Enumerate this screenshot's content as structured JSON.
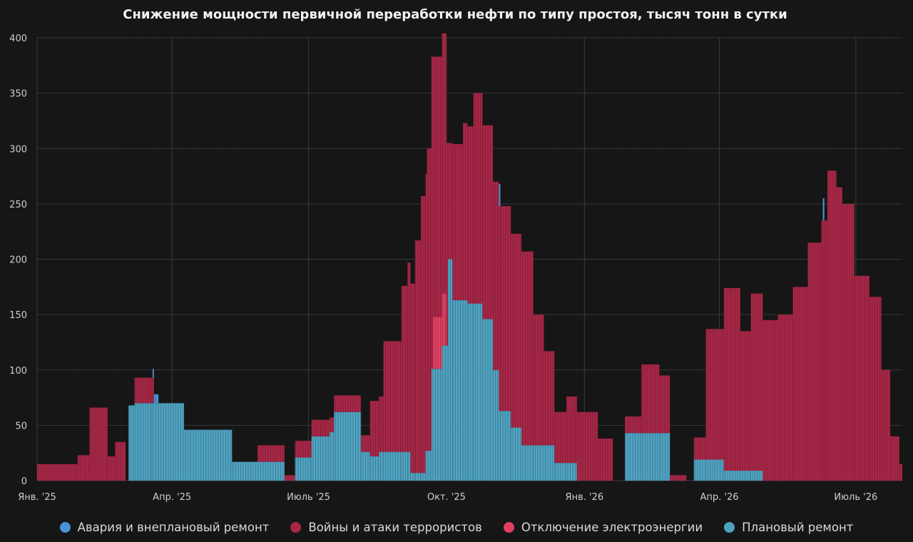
{
  "chart_data": {
    "type": "bar",
    "stacked": true,
    "title": "Снижение мощности первичной переработки нефти по типу простоя, тысяч тонн в сутки",
    "xlabel": "",
    "ylabel": "",
    "x_range": [
      "2025-01-01",
      "2026-08-01"
    ],
    "ylim": [
      0,
      400
    ],
    "y_ticks": [
      0,
      50,
      100,
      150,
      200,
      250,
      300,
      350,
      400
    ],
    "x_ticks": [
      {
        "date": "2025-01-01",
        "label": "Янв. '25"
      },
      {
        "date": "2025-04-01",
        "label": "Апр. '25"
      },
      {
        "date": "2025-07-01",
        "label": "Июль '25"
      },
      {
        "date": "2025-10-01",
        "label": "Окт. '25"
      },
      {
        "date": "2026-01-01",
        "label": "Янв. '26"
      },
      {
        "date": "2026-04-01",
        "label": "Апр. '26"
      },
      {
        "date": "2026-07-01",
        "label": "Июль '26"
      }
    ],
    "grid": true,
    "legend_position": "bottom",
    "series": [
      {
        "name": "Плановый ремонт",
        "color": "#4fa3c2",
        "points": [
          [
            "2025-01-01",
            0
          ],
          [
            "2025-03-01",
            0
          ],
          [
            "2025-03-03",
            68
          ],
          [
            "2025-03-07",
            70
          ],
          [
            "2025-04-09",
            46
          ],
          [
            "2025-05-11",
            17
          ],
          [
            "2025-06-15",
            0
          ],
          [
            "2025-06-22",
            21
          ],
          [
            "2025-07-03",
            40
          ],
          [
            "2025-07-15",
            44
          ],
          [
            "2025-07-18",
            62
          ],
          [
            "2025-08-05",
            26
          ],
          [
            "2025-08-11",
            22
          ],
          [
            "2025-08-17",
            26
          ],
          [
            "2025-09-07",
            7
          ],
          [
            "2025-09-17",
            27
          ],
          [
            "2025-09-21",
            101
          ],
          [
            "2025-09-28",
            122
          ],
          [
            "2025-10-02",
            200
          ],
          [
            "2025-10-05",
            163
          ],
          [
            "2025-10-15",
            160
          ],
          [
            "2025-10-25",
            146
          ],
          [
            "2025-11-01",
            100
          ],
          [
            "2025-11-05",
            63
          ],
          [
            "2025-11-13",
            48
          ],
          [
            "2025-11-20",
            32
          ],
          [
            "2025-12-12",
            16
          ],
          [
            "2025-12-27",
            0
          ],
          [
            "2026-01-28",
            43
          ],
          [
            "2026-02-27",
            0
          ],
          [
            "2026-03-15",
            19
          ],
          [
            "2026-04-04",
            9
          ],
          [
            "2026-04-30",
            0
          ],
          [
            "2026-08-01",
            0
          ]
        ]
      },
      {
        "name": "Отключение электроэнергии",
        "color": "#e24060",
        "points": [
          [
            "2025-01-01",
            0
          ],
          [
            "2025-09-21",
            0
          ],
          [
            "2025-09-22",
            47
          ],
          [
            "2025-10-01",
            0
          ],
          [
            "2026-08-01",
            0
          ]
        ]
      },
      {
        "name": "Войны и атаки террористов",
        "color": "#a82646",
        "points": [
          [
            "2025-01-01",
            15
          ],
          [
            "2025-01-28",
            23
          ],
          [
            "2025-02-05",
            66
          ],
          [
            "2025-02-17",
            22
          ],
          [
            "2025-02-22",
            35
          ],
          [
            "2025-03-01",
            0
          ],
          [
            "2025-03-03",
            0
          ],
          [
            "2025-03-07",
            23
          ],
          [
            "2025-03-20",
            0
          ],
          [
            "2025-05-28",
            15
          ],
          [
            "2025-06-15",
            5
          ],
          [
            "2025-06-22",
            15
          ],
          [
            "2025-07-03",
            15
          ],
          [
            "2025-07-15",
            13
          ],
          [
            "2025-07-18",
            15
          ],
          [
            "2025-08-05",
            15
          ],
          [
            "2025-08-11",
            50
          ],
          [
            "2025-08-20",
            100
          ],
          [
            "2025-09-01",
            150
          ],
          [
            "2025-09-05",
            171
          ],
          [
            "2025-09-10",
            210
          ],
          [
            "2025-09-14",
            250
          ],
          [
            "2025-09-18",
            273
          ],
          [
            "2025-09-21",
            282
          ],
          [
            "2025-09-22",
            235
          ],
          [
            "2025-10-01",
            183
          ],
          [
            "2025-10-02",
            105
          ],
          [
            "2025-10-05",
            141
          ],
          [
            "2025-10-12",
            160
          ],
          [
            "2025-10-19",
            190
          ],
          [
            "2025-10-25",
            175
          ],
          [
            "2025-11-01",
            170
          ],
          [
            "2025-11-05",
            185
          ],
          [
            "2025-11-13",
            175
          ],
          [
            "2025-11-20",
            175
          ],
          [
            "2025-11-28",
            118
          ],
          [
            "2025-12-05",
            85
          ],
          [
            "2025-12-12",
            46
          ],
          [
            "2025-12-20",
            60
          ],
          [
            "2025-12-27",
            62
          ],
          [
            "2026-01-10",
            38
          ],
          [
            "2026-01-20",
            0
          ],
          [
            "2026-01-28",
            15
          ],
          [
            "2026-02-08",
            62
          ],
          [
            "2026-02-20",
            52
          ],
          [
            "2026-02-27",
            5
          ],
          [
            "2026-03-10",
            0
          ],
          [
            "2026-03-15",
            20
          ],
          [
            "2026-03-23",
            118
          ],
          [
            "2026-04-04",
            165
          ],
          [
            "2026-04-15",
            126
          ],
          [
            "2026-04-22",
            160
          ],
          [
            "2026-04-30",
            145
          ],
          [
            "2026-05-10",
            150
          ],
          [
            "2026-05-20",
            175
          ],
          [
            "2026-05-30",
            215
          ],
          [
            "2026-06-08",
            235
          ],
          [
            "2026-06-12",
            280
          ],
          [
            "2026-06-18",
            265
          ],
          [
            "2026-06-22",
            250
          ],
          [
            "2026-06-30",
            185
          ],
          [
            "2026-07-10",
            166
          ],
          [
            "2026-07-18",
            100
          ],
          [
            "2026-07-24",
            40
          ],
          [
            "2026-07-30",
            15
          ],
          [
            "2026-08-01",
            0
          ]
        ]
      },
      {
        "name": "Авария и внеплановый ремонт",
        "color": "#4a93d8",
        "points": [
          [
            "2025-01-01",
            0
          ],
          [
            "2025-03-18",
            0
          ],
          [
            "2025-03-19",
            8
          ],
          [
            "2025-03-23",
            0
          ],
          [
            "2025-11-04",
            0
          ],
          [
            "2025-11-05",
            20
          ],
          [
            "2025-11-06",
            0
          ],
          [
            "2026-06-08",
            0
          ],
          [
            "2026-06-09",
            20
          ],
          [
            "2026-06-10",
            0
          ],
          [
            "2026-08-01",
            0
          ]
        ]
      }
    ],
    "legend_order": [
      {
        "name": "Авария и внеплановый ремонт",
        "color": "#4a93d8"
      },
      {
        "name": "Войны и атаки террористов",
        "color": "#a82646"
      },
      {
        "name": "Отключение электроэнергии",
        "color": "#e24060"
      },
      {
        "name": "Плановый ремонт",
        "color": "#4fa3c2"
      }
    ]
  }
}
